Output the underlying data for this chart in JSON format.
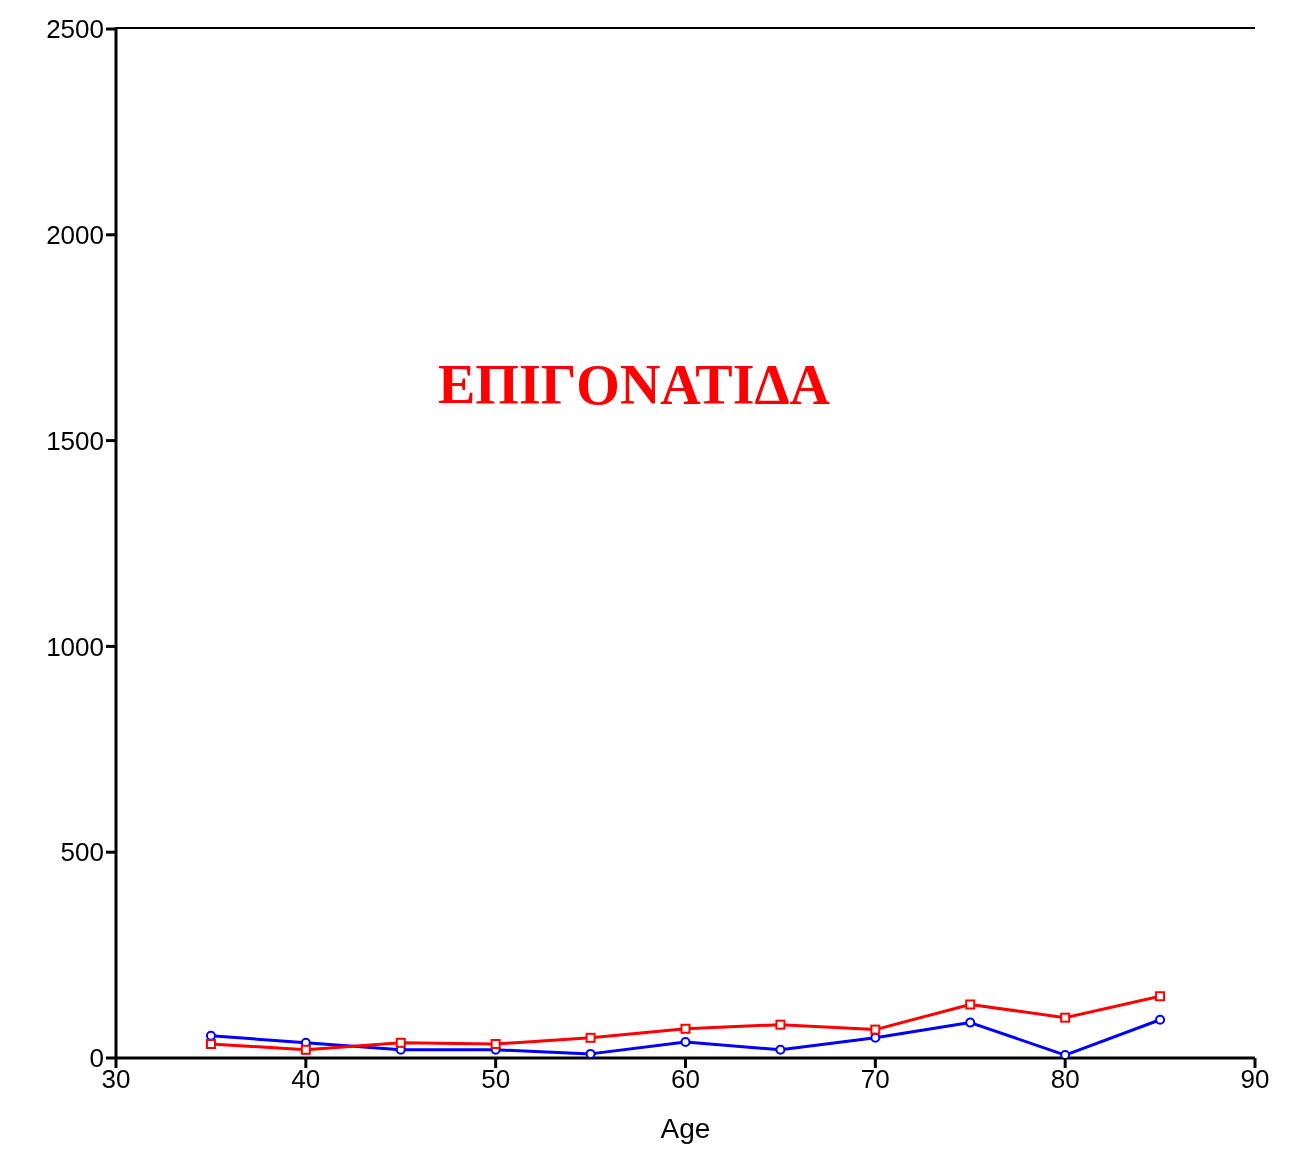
{
  "chart_data": {
    "type": "line",
    "xlabel": "Age",
    "annotations": [
      "ΕΠΙΓΟΝΑΤΙΔΑ"
    ],
    "x": [
      35,
      40,
      45,
      50,
      55,
      60,
      65,
      70,
      75,
      80,
      85
    ],
    "series": [
      {
        "color": "#0000ff",
        "marker": "circle",
        "values": [
          54,
          37,
          20,
          20,
          10,
          39,
          20,
          49,
          86,
          7,
          93
        ]
      },
      {
        "color": "#ff0000",
        "marker": "square",
        "values": [
          34,
          20,
          37,
          34,
          49,
          71,
          81,
          69,
          130,
          98,
          150
        ]
      }
    ],
    "xlim": [
      30,
      90
    ],
    "xticks": [
      30,
      40,
      50,
      60,
      70,
      80,
      90
    ],
    "ylim": [
      0,
      2500
    ],
    "yticks": [
      0,
      500,
      1000,
      1500,
      2000,
      2500
    ],
    "grid": false,
    "legend": false,
    "line_style": "solid"
  }
}
